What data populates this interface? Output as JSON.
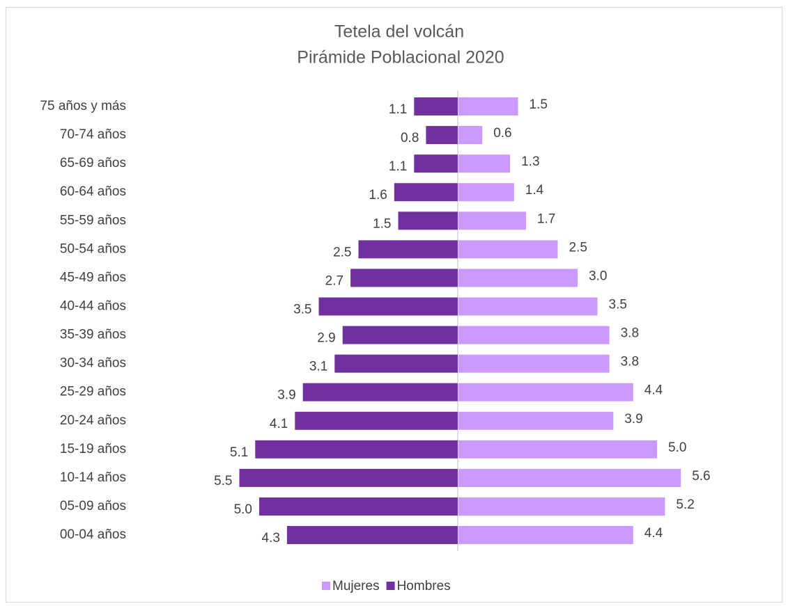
{
  "chart_data": {
    "type": "pyramid",
    "title": "Tetela del volcán",
    "subtitle": "Pirámide Poblacional 2020",
    "categories": [
      "75 años y más",
      "70-74 años",
      "65-69 años",
      "60-64 años",
      "55-59 años",
      "50-54 años",
      "45-49 años",
      "40-44 años",
      "35-39 años",
      "30-34 años",
      "25-29 años",
      "20-24 años",
      "15-19 años",
      "10-14 años",
      "05-09 años",
      "00-04 años"
    ],
    "series": [
      {
        "name": "Mujeres",
        "color": "#cc99ff",
        "values": [
          1.5,
          0.6,
          1.3,
          1.4,
          1.7,
          2.5,
          3.0,
          3.5,
          3.8,
          3.8,
          4.4,
          3.9,
          5.0,
          5.6,
          5.2,
          4.4
        ],
        "value_labels": [
          "1.5",
          "0.6",
          "1.3",
          "1.4",
          "1.7",
          "2.5",
          "3.0",
          "3.5",
          "3.8",
          "3.8",
          "4.4",
          "3.9",
          "5.0",
          "5.6",
          "5.2",
          "4.4"
        ]
      },
      {
        "name": "Hombres",
        "color": "#7030a0",
        "values": [
          1.1,
          0.8,
          1.1,
          1.6,
          1.5,
          2.5,
          2.7,
          3.5,
          2.9,
          3.1,
          3.9,
          4.1,
          5.1,
          5.5,
          5.0,
          4.3
        ],
        "value_labels": [
          "1.1",
          "0.8",
          "1.1",
          "1.6",
          "1.5",
          "2.5",
          "2.7",
          "3.5",
          "2.9",
          "3.1",
          "3.9",
          "4.1",
          "5.1",
          "5.5",
          "5.0",
          "4.3"
        ]
      }
    ],
    "legend": "bottom"
  }
}
